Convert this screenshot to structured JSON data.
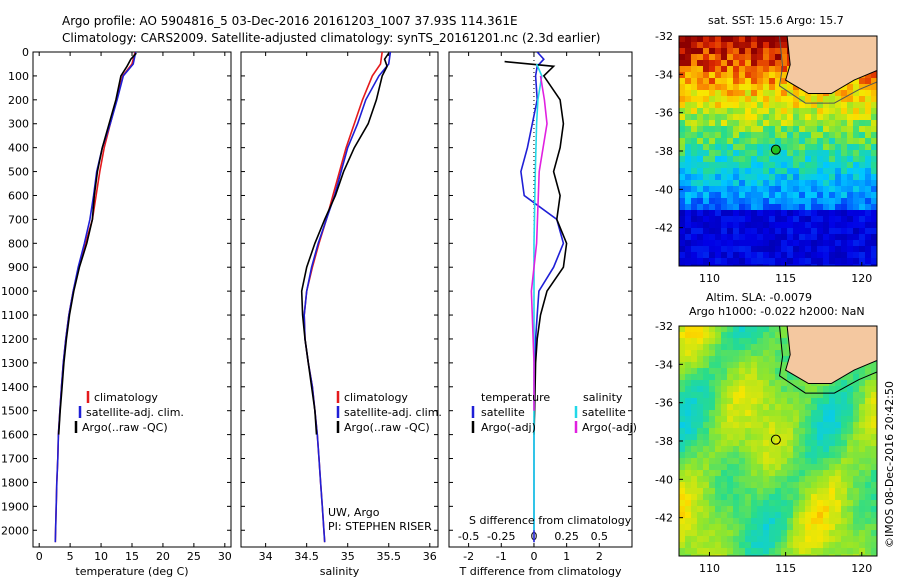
{
  "title": {
    "line1": "Argo profile: AO 5904816_5 03-Dec-2016 20161203_1007 37.93S 114.361E",
    "line2": "Climatology: CARS2009. Satellite-adjusted climatology: synTS_20161201.nc (2.3d earlier)"
  },
  "colors": {
    "climatology": "#e41a1c",
    "satellite": "#1f1fd6",
    "argo": "#000000",
    "sat_salinity": "#22d8e8",
    "argo_salinity": "#e020e0"
  },
  "legends": {
    "temp": [
      "climatology",
      "satellite-adj. clim.",
      "Argo(..raw -QC)"
    ],
    "sal": [
      "climatology",
      "satellite-adj. clim.",
      "Argo(..raw -QC)"
    ],
    "diff_header_t": "temperature",
    "diff_header_s": "salinity",
    "diff_t": [
      "satellite",
      "Argo(-adj)"
    ],
    "diff_s": [
      "satellite",
      "Argo(-adj)"
    ]
  },
  "panel_text": {
    "uw": "UW, Argo",
    "pi": "PI: STEPHEN RISER",
    "s_diff": "S difference from climatology"
  },
  "map1": {
    "title": "sat. SST: 15.6  Argo: 15.7"
  },
  "map2": {
    "title1": "Altim. SLA: -0.0079",
    "title2": "Argo h1000: -0.022 h2000: NaN"
  },
  "credit": "©IMOS 08-Dec-2016 20:42:50",
  "chart_data": [
    {
      "type": "line",
      "xlabel": "temperature (deg C)",
      "ylabel": "",
      "xlim": [
        -1,
        31
      ],
      "ylim": [
        2070,
        0
      ],
      "xticks": [
        0,
        5,
        10,
        15,
        20,
        25,
        30
      ],
      "yticks": [
        0,
        100,
        200,
        300,
        400,
        500,
        600,
        700,
        800,
        900,
        1000,
        1100,
        1200,
        1300,
        1400,
        1500,
        1600,
        1700,
        1800,
        1900,
        2000
      ],
      "series": [
        {
          "name": "climatology",
          "color": "#e41a1c",
          "points": [
            [
              15.5,
              0
            ],
            [
              15,
              50
            ],
            [
              13.5,
              100
            ],
            [
              12.5,
              200
            ],
            [
              11.5,
              300
            ],
            [
              10.5,
              400
            ],
            [
              9.8,
              500
            ],
            [
              9.2,
              600
            ],
            [
              8.6,
              700
            ],
            [
              7.5,
              800
            ],
            [
              6.4,
              900
            ],
            [
              5.5,
              1000
            ],
            [
              4.8,
              1100
            ],
            [
              4.3,
              1200
            ],
            [
              3.9,
              1300
            ],
            [
              3.6,
              1400
            ],
            [
              3.35,
              1500
            ],
            [
              3.1,
              1600
            ],
            [
              3.0,
              1700
            ],
            [
              2.85,
              1800
            ],
            [
              2.75,
              1900
            ],
            [
              2.65,
              2000
            ],
            [
              2.6,
              2050
            ]
          ]
        },
        {
          "name": "satellite-adj. clim.",
          "color": "#1f1fd6",
          "points": [
            [
              15.6,
              0
            ],
            [
              15.2,
              50
            ],
            [
              13.6,
              100
            ],
            [
              12.6,
              200
            ],
            [
              11.5,
              300
            ],
            [
              10.2,
              400
            ],
            [
              9.3,
              500
            ],
            [
              8.8,
              600
            ],
            [
              8.2,
              700
            ],
            [
              7.3,
              800
            ],
            [
              6.3,
              900
            ],
            [
              5.5,
              1000
            ],
            [
              4.8,
              1100
            ],
            [
              4.3,
              1200
            ],
            [
              3.9,
              1300
            ],
            [
              3.6,
              1400
            ],
            [
              3.35,
              1500
            ],
            [
              3.1,
              1600
            ],
            [
              3.0,
              1700
            ],
            [
              2.85,
              1800
            ],
            [
              2.75,
              1900
            ],
            [
              2.65,
              2000
            ],
            [
              2.6,
              2050
            ]
          ]
        },
        {
          "name": "Argo(..raw -QC)",
          "color": "#000000",
          "points": [
            [
              15.7,
              5
            ],
            [
              14.8,
              30
            ],
            [
              14.2,
              60
            ],
            [
              13.2,
              100
            ],
            [
              12.4,
              200
            ],
            [
              11.3,
              300
            ],
            [
              10.2,
              400
            ],
            [
              9.4,
              500
            ],
            [
              8.9,
              600
            ],
            [
              8.6,
              700
            ],
            [
              7.7,
              800
            ],
            [
              6.5,
              900
            ],
            [
              5.6,
              1000
            ],
            [
              4.9,
              1100
            ],
            [
              4.4,
              1200
            ],
            [
              4.0,
              1300
            ],
            [
              3.7,
              1400
            ],
            [
              3.4,
              1500
            ],
            [
              3.15,
              1600
            ]
          ]
        }
      ]
    },
    {
      "type": "line",
      "xlabel": "salinity",
      "ylabel": "",
      "xlim": [
        33.7,
        36.1
      ],
      "ylim": [
        2070,
        0
      ],
      "xticks": [
        34,
        34.5,
        35,
        35.5,
        36
      ],
      "series": [
        {
          "name": "climatology",
          "color": "#e41a1c",
          "points": [
            [
              35.42,
              0
            ],
            [
              35.4,
              50
            ],
            [
              35.3,
              100
            ],
            [
              35.18,
              200
            ],
            [
              35.08,
              300
            ],
            [
              34.98,
              400
            ],
            [
              34.9,
              500
            ],
            [
              34.82,
              600
            ],
            [
              34.74,
              700
            ],
            [
              34.65,
              800
            ],
            [
              34.57,
              900
            ],
            [
              34.5,
              1000
            ],
            [
              34.47,
              1100
            ],
            [
              34.48,
              1200
            ],
            [
              34.52,
              1300
            ],
            [
              34.57,
              1400
            ],
            [
              34.6,
              1500
            ],
            [
              34.63,
              1600
            ],
            [
              34.65,
              1700
            ],
            [
              34.67,
              1800
            ],
            [
              34.69,
              1900
            ],
            [
              34.71,
              2000
            ],
            [
              34.72,
              2050
            ]
          ]
        },
        {
          "name": "satellite-adj. clim.",
          "color": "#1f1fd6",
          "points": [
            [
              35.52,
              0
            ],
            [
              35.5,
              50
            ],
            [
              35.38,
              100
            ],
            [
              35.22,
              200
            ],
            [
              35.12,
              300
            ],
            [
              35.0,
              400
            ],
            [
              34.92,
              500
            ],
            [
              34.84,
              600
            ],
            [
              34.74,
              700
            ],
            [
              34.64,
              800
            ],
            [
              34.56,
              900
            ],
            [
              34.5,
              1000
            ],
            [
              34.47,
              1100
            ],
            [
              34.48,
              1200
            ],
            [
              34.52,
              1300
            ],
            [
              34.57,
              1400
            ],
            [
              34.6,
              1500
            ],
            [
              34.63,
              1600
            ],
            [
              34.65,
              1700
            ],
            [
              34.67,
              1800
            ],
            [
              34.69,
              1900
            ],
            [
              34.71,
              2000
            ],
            [
              34.72,
              2050
            ]
          ]
        },
        {
          "name": "Argo(..raw -QC)",
          "color": "#000000",
          "points": [
            [
              35.5,
              5
            ],
            [
              35.45,
              30
            ],
            [
              35.48,
              60
            ],
            [
              35.42,
              100
            ],
            [
              35.35,
              200
            ],
            [
              35.25,
              300
            ],
            [
              35.08,
              400
            ],
            [
              34.95,
              500
            ],
            [
              34.85,
              600
            ],
            [
              34.72,
              700
            ],
            [
              34.6,
              800
            ],
            [
              34.5,
              900
            ],
            [
              34.44,
              1000
            ],
            [
              34.45,
              1100
            ],
            [
              34.48,
              1200
            ],
            [
              34.52,
              1300
            ],
            [
              34.56,
              1400
            ],
            [
              34.6,
              1500
            ],
            [
              34.62,
              1600
            ]
          ]
        }
      ]
    },
    {
      "type": "line",
      "xlabel": "T difference from climatology",
      "ylabel": "",
      "xlim": [
        -2.6,
        3.0
      ],
      "ylim": [
        2070,
        0
      ],
      "xticks": [
        -2,
        -1,
        0,
        1,
        2
      ],
      "s_xlim": [
        -0.65,
        0.75
      ],
      "s_xticks": [
        -0.5,
        -0.25,
        0,
        0.25,
        0.5
      ],
      "s_xticklabels": [
        "-0.5",
        "-0.25",
        "0",
        "0.25",
        "0.5"
      ],
      "series": [
        {
          "name": "temperature satellite",
          "color": "#1f1fd6",
          "axis": "T",
          "points": [
            [
              0.1,
              0
            ],
            [
              0.3,
              30
            ],
            [
              0.1,
              60
            ],
            [
              0.05,
              100
            ],
            [
              0.1,
              200
            ],
            [
              -0.2,
              400
            ],
            [
              -0.4,
              500
            ],
            [
              -0.3,
              600
            ],
            [
              0.7,
              700
            ],
            [
              0.9,
              800
            ],
            [
              0.6,
              900
            ],
            [
              0.15,
              1000
            ],
            [
              0.1,
              1100
            ],
            [
              0.05,
              1200
            ],
            [
              0.02,
              1400
            ],
            [
              0.0,
              1600
            ],
            [
              0.0,
              1800
            ],
            [
              0.0,
              2050
            ]
          ]
        },
        {
          "name": "temperature Argo(-adj)",
          "color": "#000000",
          "axis": "T",
          "points": [
            [
              -0.9,
              40
            ],
            [
              0.6,
              60
            ],
            [
              0.3,
              100
            ],
            [
              0.8,
              200
            ],
            [
              0.9,
              300
            ],
            [
              0.8,
              400
            ],
            [
              0.6,
              500
            ],
            [
              0.8,
              600
            ],
            [
              0.7,
              700
            ],
            [
              1.0,
              800
            ],
            [
              0.9,
              900
            ],
            [
              0.4,
              1000
            ],
            [
              0.2,
              1100
            ],
            [
              0.1,
              1200
            ],
            [
              0.05,
              1300
            ],
            [
              0.02,
              1500
            ],
            [
              0.0,
              1600
            ]
          ]
        },
        {
          "name": "salinity satellite",
          "color": "#22d8e8",
          "axis": "S",
          "points": [
            [
              0.02,
              50
            ],
            [
              0.06,
              100
            ],
            [
              0.03,
              200
            ],
            [
              0.02,
              300
            ],
            [
              0.01,
              500
            ],
            [
              0.0,
              800
            ],
            [
              0.0,
              1000
            ],
            [
              0.0,
              1500
            ],
            [
              0.0,
              2000
            ]
          ]
        },
        {
          "name": "salinity Argo(-adj)",
          "color": "#e020e0",
          "axis": "S",
          "points": [
            [
              0.05,
              100
            ],
            [
              0.08,
              200
            ],
            [
              0.1,
              300
            ],
            [
              0.04,
              500
            ],
            [
              0.02,
              800
            ],
            [
              -0.02,
              1000
            ],
            [
              0.0,
              1300
            ],
            [
              0.0,
              1500
            ]
          ]
        }
      ]
    }
  ],
  "maps": {
    "sst": {
      "xticks": [
        110,
        115,
        120
      ],
      "yticks": [
        -32,
        -34,
        -36,
        -38,
        -40,
        -42
      ],
      "xlim": [
        108,
        121
      ],
      "ylim": [
        -44,
        -32
      ],
      "argo": [
        114.36,
        -37.93
      ]
    },
    "sla": {
      "xticks": [
        110,
        115,
        120
      ],
      "yticks": [
        -32,
        -34,
        -36,
        -38,
        -40,
        -42
      ],
      "xlim": [
        108,
        121
      ],
      "ylim": [
        -44,
        -32
      ],
      "argo": [
        114.36,
        -37.93
      ]
    }
  }
}
